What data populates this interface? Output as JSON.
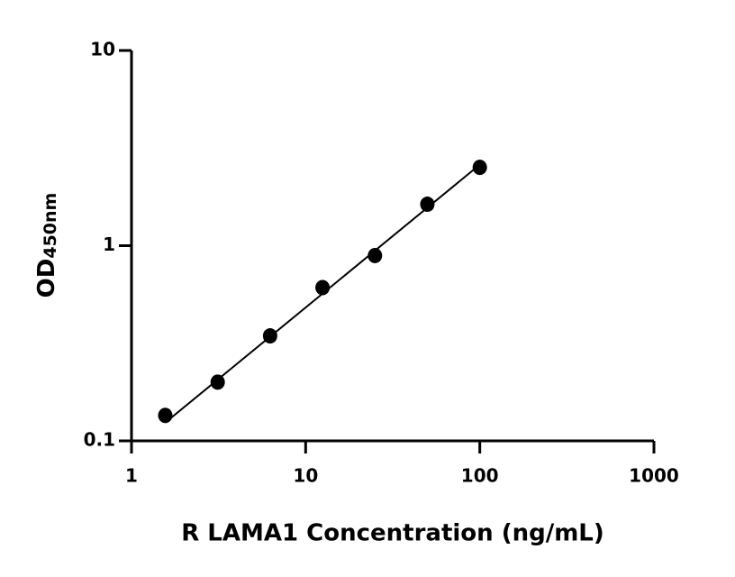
{
  "chart_data": {
    "type": "scatter",
    "xlabel": "R LAMA1 Concentration (ng/mL)",
    "ylabel": "OD",
    "ylabel_subscript": "450nm",
    "x": [
      1.5625,
      3.125,
      6.25,
      12.5,
      25,
      50,
      100
    ],
    "values": [
      0.135,
      0.2,
      0.345,
      0.61,
      0.89,
      1.63,
      2.52
    ],
    "color": "#000000",
    "fit_line": {
      "x": [
        1.5625,
        100
      ],
      "y": [
        0.124,
        2.6
      ]
    },
    "xscale": "log",
    "yscale": "log",
    "xlim": [
      1,
      1000
    ],
    "ylim": [
      0.1,
      10
    ],
    "xticks": [
      1,
      10,
      100,
      1000
    ],
    "yticks": [
      0.1,
      1,
      10
    ]
  }
}
